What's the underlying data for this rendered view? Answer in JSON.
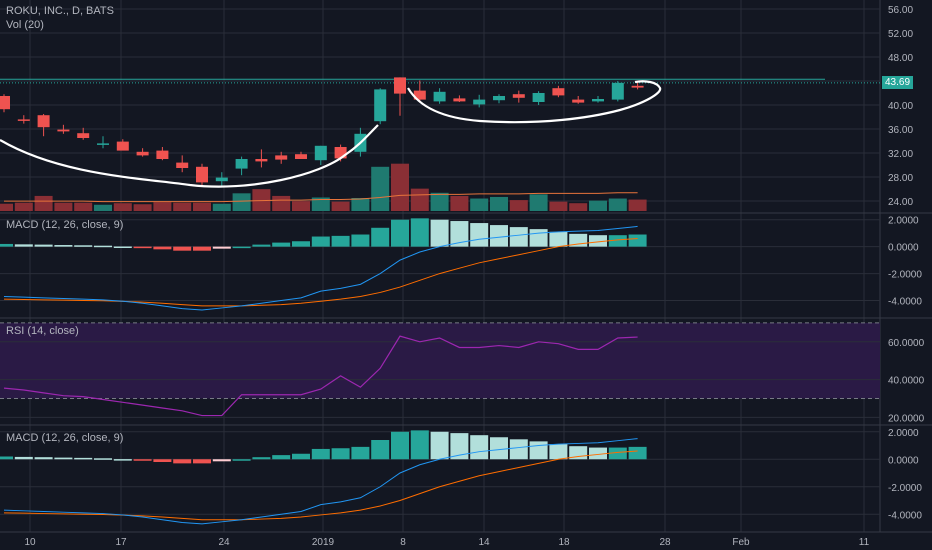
{
  "symbol_line": "ROKU, INC., D, BATS",
  "volume_label": "Vol (20)",
  "last_price_label": "43.69",
  "panes": [
    {
      "id": "price",
      "legend": "ROKU, INC., D, BATS"
    },
    {
      "id": "macd1",
      "legend": "MACD (12, 26, close, 9)"
    },
    {
      "id": "rsi",
      "legend": "RSI (14, close)"
    },
    {
      "id": "macd2",
      "legend": "MACD (12, 26, close, 9)"
    }
  ],
  "colors": {
    "background": "#131722",
    "grid": "#2a2e39",
    "up": "#26a69a",
    "down": "#ef5350",
    "vol_up": "#1f7a70",
    "vol_down": "#8a2f35",
    "vol_ma": "#e8743b",
    "macd_line": "#2196f3",
    "signal_line": "#ff6d00",
    "hist_strong_up": "#26a69a",
    "hist_weak_up": "#b2dfdb",
    "hist_strong_down": "#ef5350",
    "hist_weak_down": "#ffcdd2",
    "rsi_line": "#9c27b0",
    "rsi_band": "#2a1a45",
    "drawing": "#ffffff",
    "horizontal_line": "#26a69a",
    "axis_text": "#b2b5be"
  },
  "chart_data": [
    {
      "type": "candlestick",
      "title": "ROKU, INC., D, BATS",
      "x_ticks": [
        "10",
        "17",
        "24",
        "2019",
        "8",
        "14",
        "18",
        "28",
        "Feb",
        "11"
      ],
      "y_ticks": [
        "24.00",
        "28.00",
        "32.00",
        "36.00",
        "40.00",
        "44.00",
        "48.00",
        "52.00",
        "56.00"
      ],
      "ylim": [
        22,
        57
      ],
      "candles": [
        {
          "o": 41.5,
          "h": 41.8,
          "l": 38.8,
          "c": 39.3
        },
        {
          "o": 37.6,
          "h": 38.3,
          "l": 36.9,
          "c": 37.5
        },
        {
          "o": 38.3,
          "h": 38.5,
          "l": 34.8,
          "c": 36.3
        },
        {
          "o": 35.9,
          "h": 36.7,
          "l": 35.2,
          "c": 35.6
        },
        {
          "o": 35.3,
          "h": 36.2,
          "l": 34.2,
          "c": 34.5
        },
        {
          "o": 33.4,
          "h": 34.8,
          "l": 32.8,
          "c": 33.6
        },
        {
          "o": 33.9,
          "h": 34.3,
          "l": 32.5,
          "c": 32.4
        },
        {
          "o": 32.2,
          "h": 32.8,
          "l": 31.4,
          "c": 31.6
        },
        {
          "o": 32.4,
          "h": 33.0,
          "l": 30.8,
          "c": 31.0
        },
        {
          "o": 30.4,
          "h": 31.6,
          "l": 28.8,
          "c": 29.5
        },
        {
          "o": 29.7,
          "h": 30.2,
          "l": 26.4,
          "c": 27.1
        },
        {
          "o": 27.3,
          "h": 28.8,
          "l": 26.5,
          "c": 27.9
        },
        {
          "o": 29.4,
          "h": 31.4,
          "l": 28.3,
          "c": 31.0
        },
        {
          "o": 31.0,
          "h": 32.6,
          "l": 29.6,
          "c": 30.6
        },
        {
          "o": 31.6,
          "h": 32.2,
          "l": 30.2,
          "c": 30.9
        },
        {
          "o": 31.8,
          "h": 32.2,
          "l": 31.1,
          "c": 31.0
        },
        {
          "o": 30.8,
          "h": 33.2,
          "l": 30.0,
          "c": 33.2
        },
        {
          "o": 33.0,
          "h": 33.4,
          "l": 30.6,
          "c": 31.1
        },
        {
          "o": 32.2,
          "h": 36.2,
          "l": 31.4,
          "c": 35.2
        },
        {
          "o": 37.3,
          "h": 42.8,
          "l": 36.8,
          "c": 42.6
        },
        {
          "o": 44.6,
          "h": 44.6,
          "l": 38.2,
          "c": 41.9
        },
        {
          "o": 42.4,
          "h": 44.1,
          "l": 40.4,
          "c": 40.9
        },
        {
          "o": 40.6,
          "h": 42.8,
          "l": 40.2,
          "c": 42.2
        },
        {
          "o": 41.1,
          "h": 41.6,
          "l": 40.5,
          "c": 40.6
        },
        {
          "o": 40.1,
          "h": 41.7,
          "l": 39.6,
          "c": 40.9
        },
        {
          "o": 40.8,
          "h": 41.8,
          "l": 40.3,
          "c": 41.5
        },
        {
          "o": 41.8,
          "h": 42.4,
          "l": 40.4,
          "c": 41.2
        },
        {
          "o": 40.5,
          "h": 42.3,
          "l": 40.0,
          "c": 42.0
        },
        {
          "o": 42.8,
          "h": 43.2,
          "l": 41.3,
          "c": 41.6
        },
        {
          "o": 40.9,
          "h": 41.5,
          "l": 40.2,
          "c": 40.4
        },
        {
          "o": 40.6,
          "h": 41.5,
          "l": 40.4,
          "c": 41.0
        },
        {
          "o": 40.9,
          "h": 44.0,
          "l": 40.6,
          "c": 43.7
        },
        {
          "o": 43.2,
          "h": 44.0,
          "l": 42.6,
          "c": 42.9
        }
      ],
      "volume": [
        1.4,
        1.6,
        2.9,
        1.6,
        1.6,
        1.2,
        1.5,
        1.3,
        1.7,
        1.6,
        1.6,
        1.4,
        3.4,
        4.2,
        2.9,
        1.9,
        2.6,
        1.8,
        2.5,
        8.5,
        9.1,
        4.3,
        3.5,
        2.9,
        2.4,
        2.7,
        2.1,
        3.2,
        1.8,
        1.5,
        2.0,
        2.4,
        2.2
      ],
      "volume_ma": [
        1.9,
        1.9,
        1.9,
        1.9,
        1.9,
        1.8,
        1.8,
        1.8,
        1.8,
        1.8,
        1.8,
        1.8,
        1.9,
        2.0,
        2.1,
        2.1,
        2.2,
        2.2,
        2.3,
        2.6,
        3.0,
        3.1,
        3.2,
        3.2,
        3.3,
        3.3,
        3.3,
        3.4,
        3.4,
        3.4,
        3.4,
        3.5,
        3.5
      ],
      "last_price": 43.69
    },
    {
      "type": "macd",
      "title": "MACD (12, 26, close, 9)",
      "y_ticks": [
        "2.0000",
        "0.0000",
        "-2.0000",
        "-4.0000"
      ],
      "ylim": [
        -5,
        2.2
      ],
      "macd": [
        -3.7,
        -3.75,
        -3.8,
        -3.85,
        -3.9,
        -3.95,
        -4.05,
        -4.2,
        -4.4,
        -4.6,
        -4.7,
        -4.55,
        -4.4,
        -4.2,
        -4.0,
        -3.8,
        -3.3,
        -3.1,
        -2.8,
        -2.0,
        -1.0,
        -0.4,
        0.0,
        0.3,
        0.55,
        0.7,
        0.85,
        1.0,
        1.1,
        1.15,
        1.2,
        1.35,
        1.5
      ],
      "signal": [
        -3.9,
        -3.92,
        -3.95,
        -3.97,
        -4.0,
        -4.02,
        -4.06,
        -4.12,
        -4.2,
        -4.3,
        -4.4,
        -4.4,
        -4.4,
        -4.35,
        -4.3,
        -4.2,
        -4.05,
        -3.9,
        -3.7,
        -3.4,
        -3.0,
        -2.5,
        -2.0,
        -1.6,
        -1.2,
        -0.9,
        -0.6,
        -0.3,
        0.0,
        0.2,
        0.35,
        0.5,
        0.6
      ],
      "histogram": [
        0.2,
        0.17,
        0.15,
        0.12,
        0.1,
        0.07,
        0.01,
        -0.08,
        -0.2,
        -0.3,
        -0.3,
        -0.15,
        0.0,
        0.15,
        0.3,
        0.4,
        0.75,
        0.8,
        0.9,
        1.4,
        2.0,
        2.1,
        2.0,
        1.9,
        1.75,
        1.6,
        1.45,
        1.3,
        1.1,
        0.95,
        0.85,
        0.85,
        0.9
      ]
    },
    {
      "type": "line",
      "title": "RSI (14, close)",
      "y_ticks": [
        "20.0000",
        "40.0000",
        "60.0000"
      ],
      "ylim": [
        16,
        71
      ],
      "bands": [
        30,
        70
      ],
      "values": [
        35.5,
        34.5,
        33.0,
        31.5,
        31.0,
        29.5,
        28.0,
        26.5,
        25.0,
        23.5,
        21.0,
        21.0,
        32.0,
        32.0,
        32.0,
        32.0,
        35.0,
        42.0,
        36.0,
        46.0,
        63.0,
        60.0,
        62.0,
        57.0,
        57.0,
        58.0,
        57.0,
        60.0,
        59.0,
        56.0,
        56.0,
        62.0,
        62.5
      ]
    },
    {
      "type": "macd",
      "title": "MACD (12, 26, close, 9)",
      "y_ticks": [
        "2.0000",
        "0.0000",
        "-2.0000",
        "-4.0000"
      ],
      "ylim": [
        -5,
        2.2
      ],
      "macd": [
        -3.7,
        -3.75,
        -3.8,
        -3.85,
        -3.9,
        -3.95,
        -4.05,
        -4.2,
        -4.4,
        -4.6,
        -4.7,
        -4.55,
        -4.4,
        -4.2,
        -4.0,
        -3.8,
        -3.3,
        -3.1,
        -2.8,
        -2.0,
        -1.0,
        -0.4,
        0.0,
        0.3,
        0.55,
        0.7,
        0.85,
        1.0,
        1.1,
        1.15,
        1.2,
        1.35,
        1.5
      ],
      "signal": [
        -3.9,
        -3.92,
        -3.95,
        -3.97,
        -4.0,
        -4.02,
        -4.06,
        -4.12,
        -4.2,
        -4.3,
        -4.4,
        -4.4,
        -4.4,
        -4.35,
        -4.3,
        -4.2,
        -4.05,
        -3.9,
        -3.7,
        -3.4,
        -3.0,
        -2.5,
        -2.0,
        -1.6,
        -1.2,
        -0.9,
        -0.6,
        -0.3,
        0.0,
        0.2,
        0.35,
        0.5,
        0.6
      ],
      "histogram": [
        0.2,
        0.17,
        0.15,
        0.12,
        0.1,
        0.07,
        0.01,
        -0.08,
        -0.2,
        -0.3,
        -0.3,
        -0.15,
        0.0,
        0.15,
        0.3,
        0.4,
        0.75,
        0.8,
        0.9,
        1.4,
        2.0,
        2.1,
        2.0,
        1.9,
        1.75,
        1.6,
        1.45,
        1.3,
        1.1,
        0.95,
        0.85,
        0.85,
        0.9
      ]
    }
  ]
}
